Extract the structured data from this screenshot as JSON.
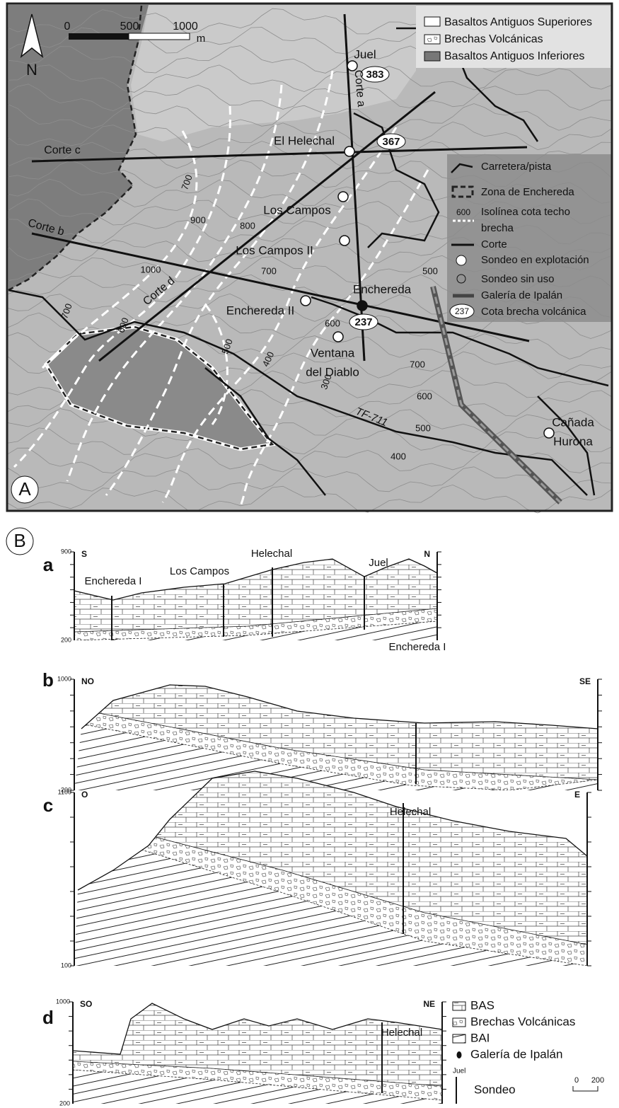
{
  "map": {
    "panel_label": "A",
    "scale": {
      "ticks": [
        0,
        500,
        1000
      ],
      "unit": "m"
    },
    "north": "N",
    "legend_units": [
      "Basaltos Antiguos Superiores",
      "Brechas Volcánicas",
      "Basaltos Antiguos Inferiores"
    ],
    "legend_symbols": {
      "road": "Carretera/pista",
      "zone": "Zona de Enchereda",
      "isoline_sample": 600,
      "isoline": [
        "Isolínea cota techo",
        "brecha"
      ],
      "section": "Corte",
      "well_active": "Sondeo en explotación",
      "well_unused": "Sondeo sin uso",
      "gallery": "Galería de Ipalán",
      "elevation_sample": 237,
      "elevation": "Cota brecha volcánica"
    },
    "places": [
      "Juel",
      "El Helechal",
      "Los Campos",
      "Los Campos II",
      "Enchereda II",
      "Enchereda",
      "Ventana",
      "del Diablo",
      "Cañada",
      "Hurona"
    ],
    "sections": [
      "Corte a",
      "Corte b",
      "Corte c",
      "Corte d"
    ],
    "road": "TF-711",
    "elevations": [
      383,
      367,
      237
    ],
    "isolines": [
      700,
      900,
      800,
      1000,
      700,
      700,
      600,
      500,
      400,
      300,
      600,
      500,
      700,
      600,
      500,
      400
    ]
  },
  "cross_sections": {
    "panel_label": "B",
    "sections": [
      {
        "label": "a",
        "left": "S",
        "right": "N",
        "ymax": 900,
        "ymin": 200,
        "wells": [
          "Enchereda I",
          "Los Campos",
          "Helechal",
          "Juel"
        ]
      },
      {
        "label": "b",
        "left": "NO",
        "right": "SE",
        "ymax": 1000,
        "ymin": 200,
        "wells": [
          "Enchereda I"
        ]
      },
      {
        "label": "c",
        "left": "O",
        "right": "E",
        "ymax": 1100,
        "ymin": 100,
        "wells": [
          "Helechal"
        ]
      },
      {
        "label": "d",
        "left": "SO",
        "right": "NE",
        "ymax": 1000,
        "ymin": 200,
        "wells": [
          "Helechal"
        ]
      }
    ],
    "legend": {
      "items": [
        "BAS",
        "Brechas Volcánicas",
        "BAI",
        "Galería de Ipalán"
      ],
      "well_example": "Juel",
      "well": "Sondeo",
      "scale": [
        0,
        200
      ]
    }
  }
}
